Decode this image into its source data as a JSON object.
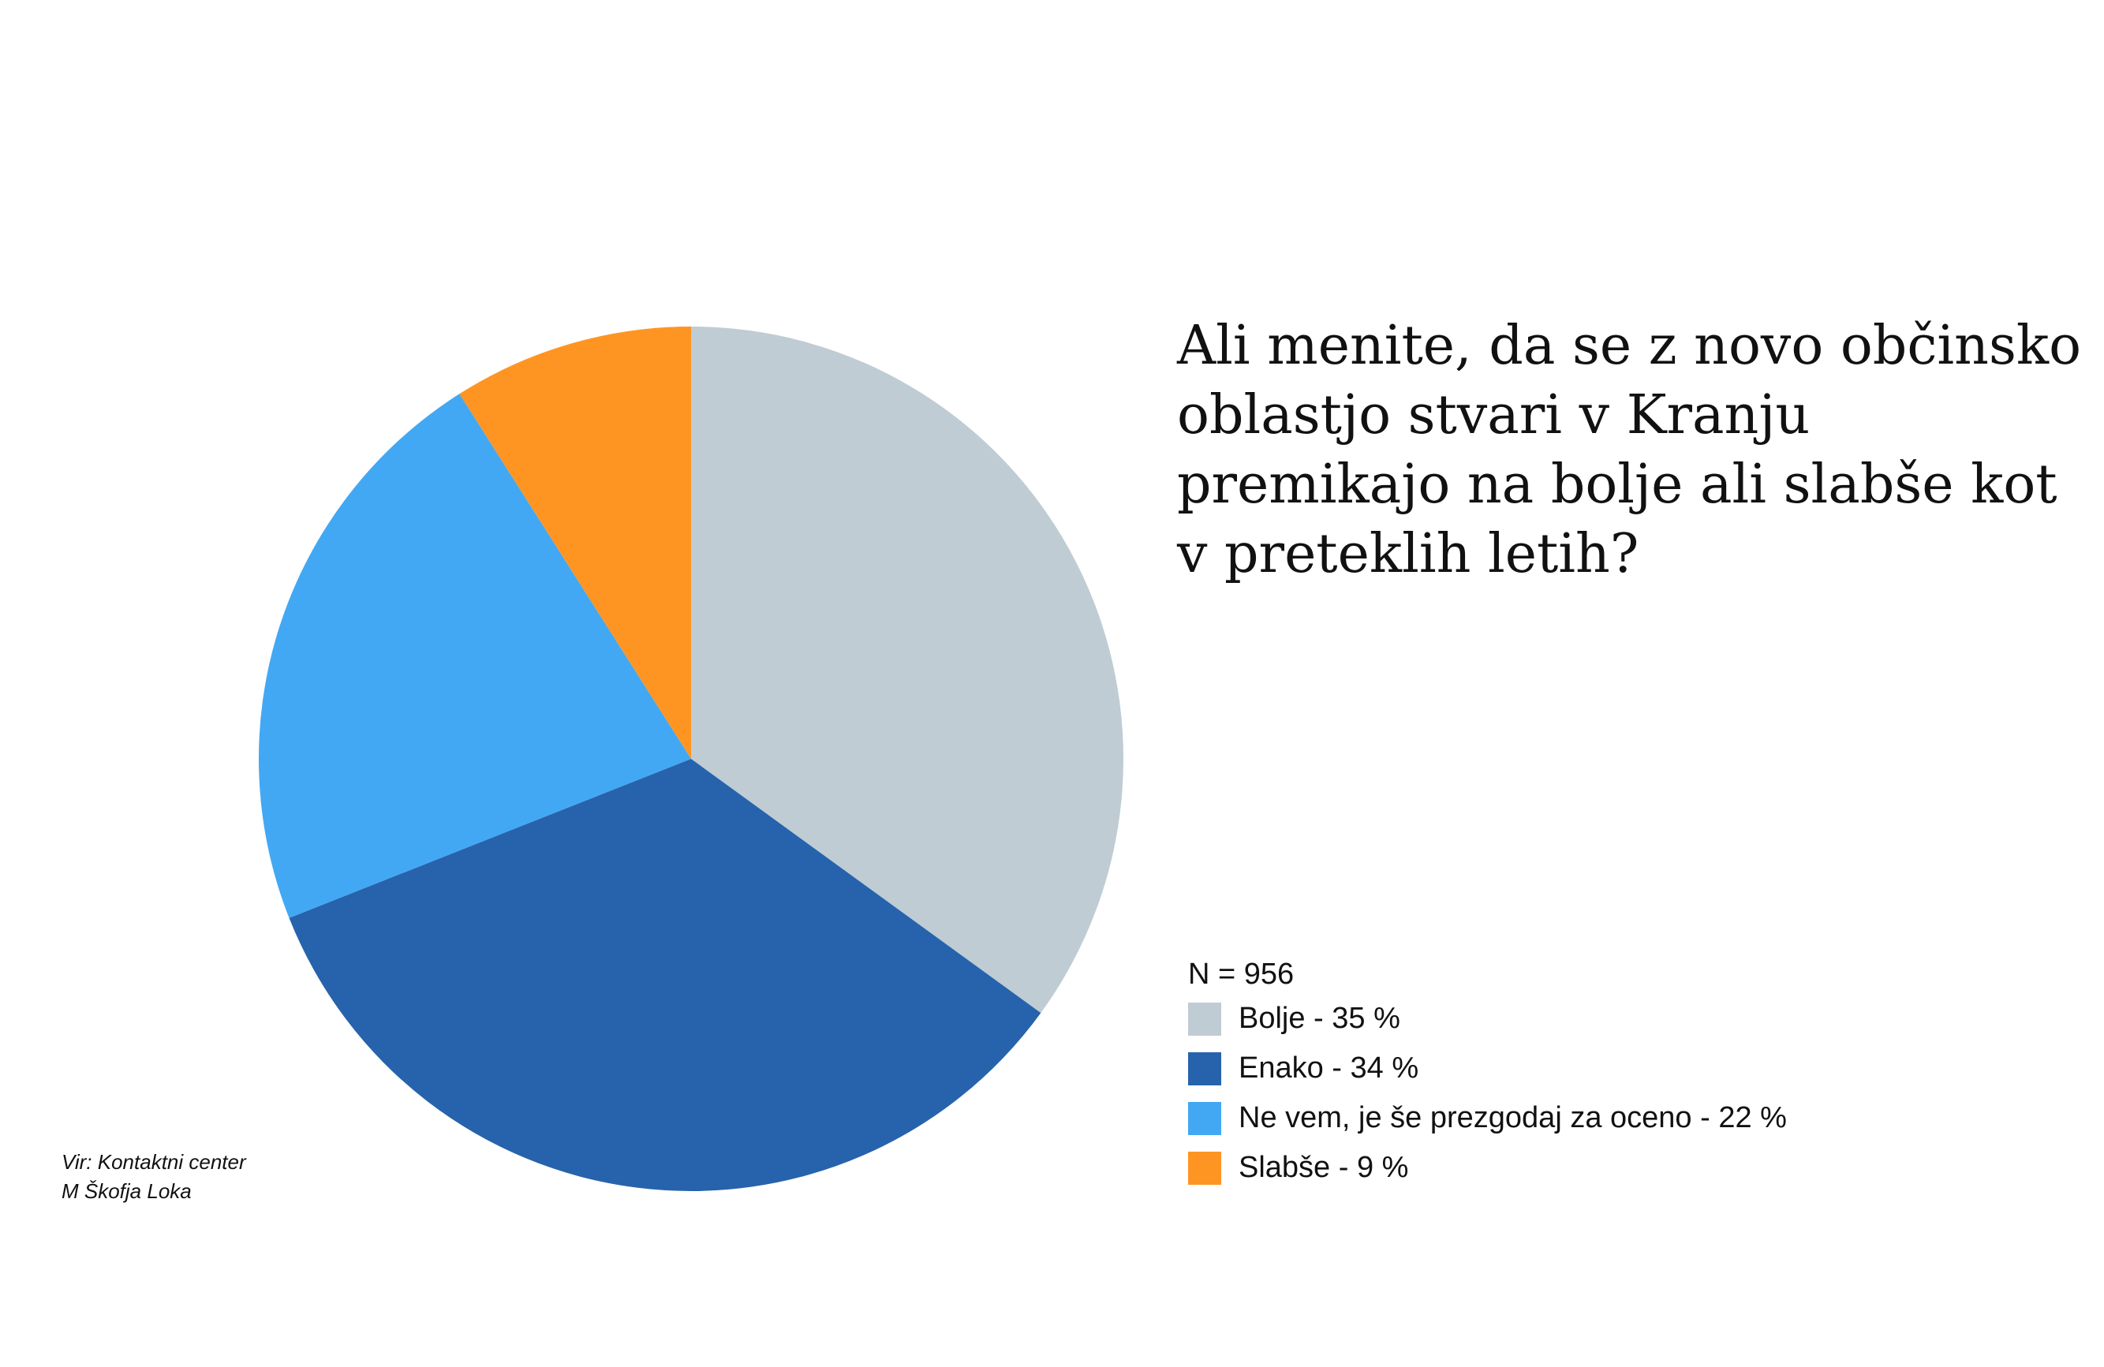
{
  "chart_data": {
    "type": "pie",
    "title": "Ali menite, da se z novo občinsko oblastjo stvari v Kranju premikajo na bolje ali slabše kot v preteklih letih?",
    "sample_size_label": "N = 956",
    "start_angle_deg": 0,
    "direction": "clockwise",
    "legend_position": "bottom-right",
    "slices": [
      {
        "label": "Bolje - 35 %",
        "value": 35,
        "color": "#bfccd4"
      },
      {
        "label": "Enako - 34 %",
        "value": 34,
        "color": "#2763ac"
      },
      {
        "label": "Ne vem, je še prezgodaj za oceno - 22 %",
        "value": 22,
        "color": "#42a8f3"
      },
      {
        "label": "Slabše - 9 %",
        "value": 9,
        "color": "#fe9523"
      }
    ]
  },
  "source": {
    "line1": "Vir: Kontaktni center",
    "line2": "M Škofja Loka"
  }
}
